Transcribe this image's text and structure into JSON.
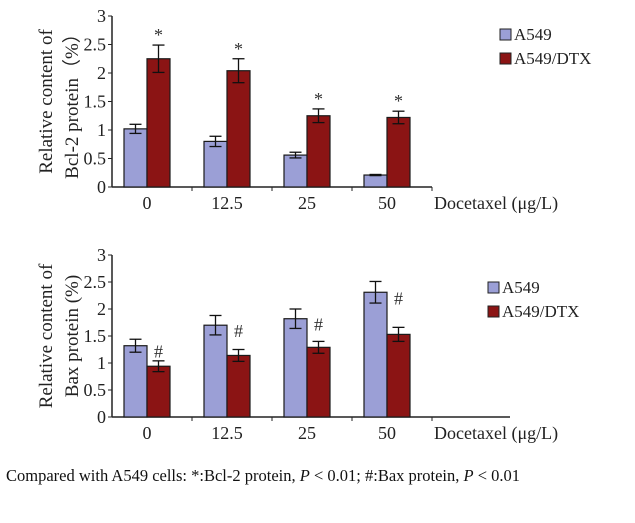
{
  "chart_data": [
    {
      "type": "bar",
      "id": "bcl2",
      "ylabel_lines": [
        "Relative content of",
        "Bcl-2 protein（%）"
      ],
      "xlabel": "Docetaxel (μg/L)",
      "categories": [
        "0",
        "12.5",
        "25",
        "50"
      ],
      "ylim": [
        0,
        3
      ],
      "yticks": [
        "0",
        "0.5",
        "1",
        "1.5",
        "2",
        "2.5",
        "3"
      ],
      "legend_position": "top-right",
      "series": [
        {
          "name": "A549",
          "color": "#9b9fd6",
          "values": [
            1.02,
            0.8,
            0.56,
            0.21
          ],
          "errors": [
            0.08,
            0.09,
            0.05,
            0.01
          ]
        },
        {
          "name": "A549/DTX",
          "color": "#8b1414",
          "values": [
            2.25,
            2.04,
            1.25,
            1.22
          ],
          "errors": [
            0.24,
            0.21,
            0.12,
            0.11
          ]
        }
      ],
      "significance": {
        "marker": "*",
        "series": "A549/DTX",
        "categories": [
          "0",
          "12.5",
          "25",
          "50"
        ]
      }
    },
    {
      "type": "bar",
      "id": "bax",
      "ylabel_lines": [
        "Relative content of",
        "Bax protein (%)"
      ],
      "xlabel": "Docetaxel (μg/L)",
      "categories": [
        "0",
        "12.5",
        "25",
        "50"
      ],
      "ylim": [
        0,
        3
      ],
      "yticks": [
        "0",
        "0.5",
        "1",
        "1.5",
        "2",
        "2.5",
        "3"
      ],
      "legend_position": "top-right",
      "series": [
        {
          "name": "A549",
          "color": "#9b9fd6",
          "values": [
            1.32,
            1.7,
            1.82,
            2.31
          ],
          "errors": [
            0.12,
            0.18,
            0.18,
            0.2
          ]
        },
        {
          "name": "A549/DTX",
          "color": "#8b1414",
          "values": [
            0.94,
            1.14,
            1.29,
            1.53
          ],
          "errors": [
            0.1,
            0.11,
            0.11,
            0.13
          ]
        }
      ],
      "significance": {
        "marker": "#",
        "series": "A549",
        "categories": [
          "0",
          "12.5",
          "25",
          "50"
        ]
      }
    }
  ],
  "caption": {
    "prefix": "Compared with A549 cells: *:Bcl-2 protein, ",
    "p1": "P",
    "mid": " < 0.01; #:Bax protein, ",
    "p2": "P",
    "suffix": " < 0.01"
  }
}
